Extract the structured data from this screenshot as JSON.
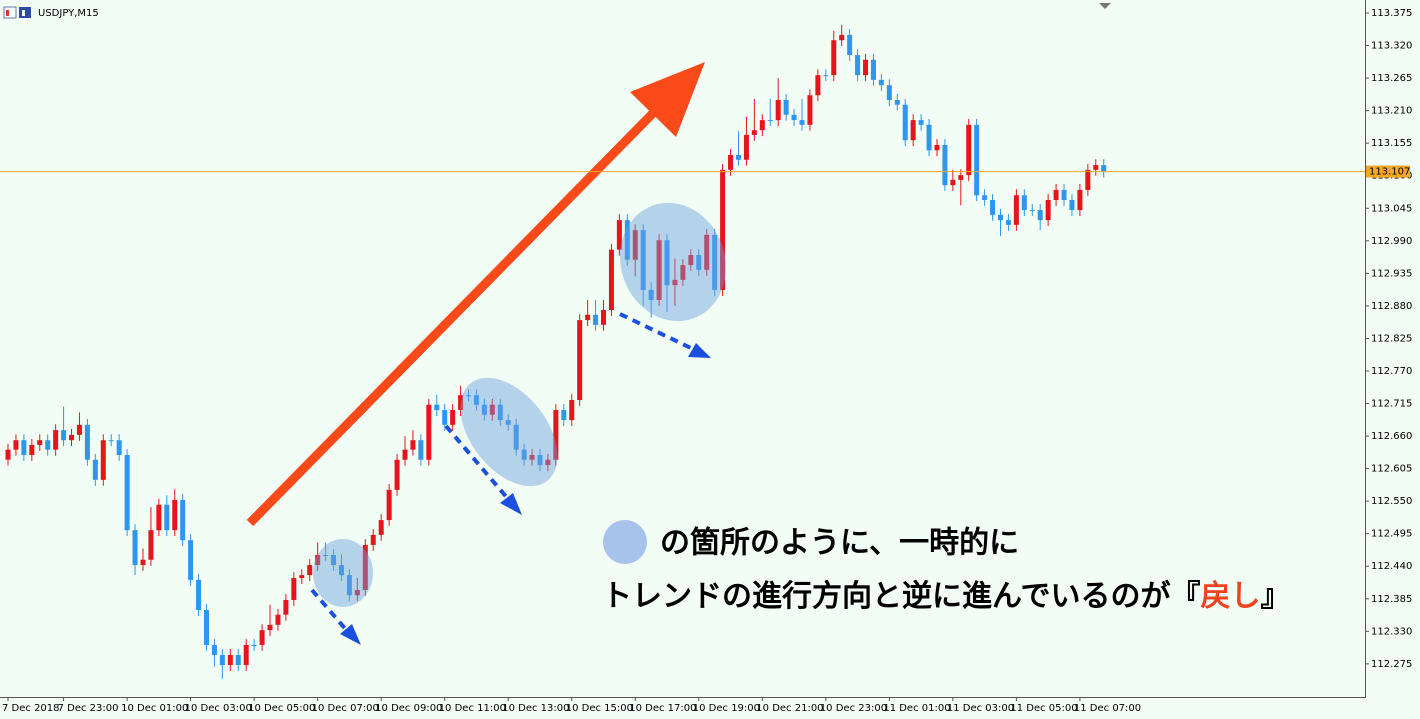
{
  "chart_data": {
    "type": "candlestick",
    "title": "USDJPY,M15",
    "bull_color": "#e8141b",
    "bear_color": "#2f96ee",
    "current_price": 113.107,
    "current_price_color": "#f5a623",
    "ylim": [
      112.219,
      113.397
    ],
    "yticks": [
      112.275,
      {
        "value": 112.33,
        "label": "112.330"
      },
      112.385,
      {
        "value": 112.44,
        "label": "112.440"
      },
      112.495,
      {
        "value": 112.55,
        "label": "112.550"
      },
      112.605,
      {
        "value": 112.66,
        "label": "112.660"
      },
      112.715,
      {
        "value": 112.77,
        "label": "112.770"
      },
      112.825,
      {
        "value": 112.88,
        "label": "112.880"
      },
      112.935,
      {
        "value": 112.99,
        "label": "112.990"
      },
      113.045,
      {
        "value": 113.1,
        "label": "113.100"
      },
      113.155,
      {
        "value": 113.21,
        "label": "113.210"
      },
      113.265,
      {
        "value": 113.32,
        "label": "113.320"
      },
      113.375
    ],
    "categories": [
      "7 Dec 2018",
      null,
      null,
      null,
      null,
      null,
      null,
      "7 Dec 23:00",
      null,
      null,
      null,
      null,
      null,
      null,
      null,
      "10 Dec 01:00",
      null,
      null,
      null,
      null,
      null,
      null,
      null,
      "10 Dec 03:00",
      null,
      null,
      null,
      null,
      null,
      null,
      null,
      "10 Dec 05:00",
      null,
      null,
      null,
      null,
      null,
      null,
      null,
      "10 Dec 07:00",
      null,
      null,
      null,
      null,
      null,
      null,
      null,
      "10 Dec 09:00",
      null,
      null,
      null,
      null,
      null,
      null,
      null,
      "10 Dec 11:00",
      null,
      null,
      null,
      null,
      null,
      null,
      null,
      "10 Dec 13:00",
      null,
      null,
      null,
      null,
      null,
      null,
      null,
      "10 Dec 15:00",
      null,
      null,
      null,
      null,
      null,
      null,
      null,
      "10 Dec 17:00",
      null,
      null,
      null,
      null,
      null,
      null,
      null,
      "10 Dec 19:00",
      null,
      null,
      null,
      null,
      null,
      null,
      null,
      "10 Dec 21:00",
      null,
      null,
      null,
      null,
      null,
      null,
      null,
      "10 Dec 23:00",
      null,
      null,
      null,
      null,
      null,
      null,
      null,
      "11 Dec 01:00",
      null,
      null,
      null,
      null,
      null,
      null,
      null,
      "11 Dec 03:00",
      null,
      null,
      null,
      null,
      null,
      null,
      null,
      "11 Dec 05:00",
      null,
      null,
      null,
      null,
      null,
      null,
      null,
      "11 Dec 07:00",
      null,
      null,
      null
    ],
    "ohlc": [
      [
        112.62,
        112.647,
        112.61,
        112.637
      ],
      [
        112.637,
        112.663,
        112.627,
        112.653
      ],
      [
        112.653,
        112.663,
        112.618,
        112.628
      ],
      [
        112.628,
        112.655,
        112.618,
        112.645
      ],
      [
        112.645,
        112.663,
        112.635,
        112.653
      ],
      [
        112.653,
        112.663,
        112.627,
        112.637
      ],
      [
        112.637,
        112.68,
        112.627,
        112.67
      ],
      [
        112.67,
        112.71,
        112.643,
        112.653
      ],
      [
        112.653,
        112.672,
        112.643,
        112.662
      ],
      [
        112.662,
        112.7,
        112.652,
        112.679
      ],
      [
        112.679,
        112.689,
        112.61,
        112.62
      ],
      [
        112.62,
        112.63,
        112.576,
        112.586
      ],
      [
        112.586,
        112.663,
        112.576,
        112.653
      ],
      [
        112.653,
        112.663,
        112.643,
        112.653
      ],
      [
        112.653,
        112.663,
        112.618,
        112.628
      ],
      [
        112.628,
        112.638,
        112.491,
        112.501
      ],
      [
        112.501,
        112.511,
        112.425,
        112.442
      ],
      [
        112.442,
        112.47,
        112.432,
        112.451
      ],
      [
        112.451,
        112.54,
        112.441,
        112.501
      ],
      [
        112.501,
        112.554,
        112.491,
        112.544
      ],
      [
        112.544,
        112.56,
        112.491,
        112.501
      ],
      [
        112.501,
        112.57,
        112.491,
        112.552
      ],
      [
        112.552,
        112.562,
        112.474,
        112.484
      ],
      [
        112.484,
        112.494,
        112.407,
        112.417
      ],
      [
        112.417,
        112.427,
        112.356,
        112.366
      ],
      [
        112.366,
        112.376,
        112.297,
        112.307
      ],
      [
        112.307,
        112.317,
        112.27,
        112.29
      ],
      [
        112.29,
        112.3,
        112.25,
        112.273
      ],
      [
        112.273,
        112.3,
        112.263,
        112.29
      ],
      [
        112.29,
        112.3,
        112.263,
        112.273
      ],
      [
        112.273,
        112.317,
        112.263,
        112.307
      ],
      [
        112.307,
        112.317,
        112.297,
        112.307
      ],
      [
        112.307,
        112.342,
        112.297,
        112.332
      ],
      [
        112.332,
        112.375,
        112.322,
        112.341
      ],
      [
        112.341,
        112.368,
        112.331,
        112.358
      ],
      [
        112.358,
        112.393,
        112.348,
        112.383
      ],
      [
        112.383,
        112.43,
        112.373,
        112.42
      ],
      [
        112.42,
        112.435,
        112.41,
        112.425
      ],
      [
        112.425,
        112.452,
        112.415,
        112.442
      ],
      [
        112.442,
        112.48,
        112.432,
        112.459
      ],
      [
        112.459,
        112.48,
        112.449,
        112.459
      ],
      [
        112.459,
        112.469,
        112.432,
        112.442
      ],
      [
        112.442,
        112.46,
        112.415,
        112.425
      ],
      [
        112.425,
        112.435,
        112.381,
        112.391
      ],
      [
        112.391,
        112.42,
        112.381,
        112.4
      ],
      [
        112.4,
        112.486,
        112.39,
        112.476
      ],
      [
        112.476,
        112.503,
        112.466,
        112.493
      ],
      [
        112.493,
        112.528,
        112.483,
        112.518
      ],
      [
        112.518,
        112.579,
        112.508,
        112.569
      ],
      [
        112.569,
        112.63,
        112.559,
        112.62
      ],
      [
        112.62,
        112.66,
        112.61,
        112.637
      ],
      [
        112.637,
        112.67,
        112.627,
        112.653
      ],
      [
        112.653,
        112.663,
        112.61,
        112.62
      ],
      [
        112.62,
        112.723,
        112.61,
        112.713
      ],
      [
        112.713,
        112.73,
        112.694,
        112.704
      ],
      [
        112.704,
        112.714,
        112.669,
        112.679
      ],
      [
        112.679,
        112.714,
        112.669,
        112.704
      ],
      [
        112.704,
        112.745,
        112.694,
        112.729
      ],
      [
        112.729,
        112.739,
        112.719,
        112.729
      ],
      [
        112.729,
        112.739,
        112.703,
        112.713
      ],
      [
        112.713,
        112.723,
        112.686,
        112.696
      ],
      [
        112.696,
        112.723,
        112.686,
        112.713
      ],
      [
        112.713,
        112.723,
        112.677,
        112.687
      ],
      [
        112.687,
        112.697,
        112.669,
        112.679
      ],
      [
        112.679,
        112.689,
        112.627,
        112.637
      ],
      [
        112.637,
        112.647,
        112.61,
        112.62
      ],
      [
        112.62,
        112.638,
        112.61,
        112.628
      ],
      [
        112.628,
        112.638,
        112.601,
        112.611
      ],
      [
        112.611,
        112.63,
        112.601,
        112.62
      ],
      [
        112.62,
        112.714,
        112.61,
        112.704
      ],
      [
        112.704,
        112.714,
        112.677,
        112.687
      ],
      [
        112.687,
        112.731,
        112.677,
        112.721
      ],
      [
        112.721,
        112.866,
        112.711,
        112.856
      ],
      [
        112.856,
        112.89,
        112.846,
        112.865
      ],
      [
        112.865,
        112.89,
        112.838,
        112.848
      ],
      [
        112.848,
        112.89,
        112.838,
        112.873
      ],
      [
        112.873,
        112.985,
        112.863,
        112.975
      ],
      [
        112.975,
        113.035,
        112.965,
        113.025
      ],
      [
        113.025,
        113.035,
        112.948,
        112.958
      ],
      [
        112.958,
        113.018,
        112.93,
        113.008
      ],
      [
        113.008,
        113.018,
        112.88,
        112.907
      ],
      [
        112.907,
        112.92,
        112.86,
        112.89
      ],
      [
        112.89,
        113.001,
        112.88,
        112.991
      ],
      [
        112.991,
        113.001,
        112.87,
        112.915
      ],
      [
        112.915,
        112.96,
        112.88,
        112.924
      ],
      [
        112.924,
        112.959,
        112.914,
        112.949
      ],
      [
        112.949,
        112.976,
        112.939,
        112.966
      ],
      [
        112.966,
        112.976,
        112.931,
        112.941
      ],
      [
        112.941,
        113.01,
        112.931,
        113.0
      ],
      [
        113.0,
        113.01,
        112.897,
        112.907
      ],
      [
        112.907,
        113.12,
        112.897,
        113.11
      ],
      [
        113.11,
        113.145,
        113.1,
        113.135
      ],
      [
        113.135,
        113.175,
        113.117,
        113.127
      ],
      [
        113.127,
        113.2,
        113.117,
        113.169
      ],
      [
        113.169,
        113.23,
        113.159,
        113.177
      ],
      [
        113.177,
        113.204,
        113.167,
        113.194
      ],
      [
        113.194,
        113.23,
        113.184,
        113.194
      ],
      [
        113.194,
        113.265,
        113.184,
        113.228
      ],
      [
        113.228,
        113.238,
        113.193,
        113.203
      ],
      [
        113.203,
        113.213,
        113.184,
        113.194
      ],
      [
        113.194,
        113.23,
        113.176,
        113.186
      ],
      [
        113.186,
        113.246,
        113.176,
        113.236
      ],
      [
        113.236,
        113.28,
        113.226,
        113.27
      ],
      [
        113.27,
        113.28,
        113.26,
        113.27
      ],
      [
        113.27,
        113.345,
        113.26,
        113.329
      ],
      [
        113.329,
        113.355,
        113.319,
        113.338
      ],
      [
        113.338,
        113.348,
        113.294,
        113.304
      ],
      [
        113.304,
        113.314,
        113.26,
        113.27
      ],
      [
        113.27,
        113.306,
        113.26,
        113.296
      ],
      [
        113.296,
        113.306,
        113.252,
        113.262
      ],
      [
        113.262,
        113.272,
        113.243,
        113.253
      ],
      [
        113.253,
        113.263,
        113.218,
        113.228
      ],
      [
        113.228,
        113.238,
        113.21,
        113.22
      ],
      [
        113.22,
        113.23,
        113.15,
        113.16
      ],
      [
        113.16,
        113.204,
        113.15,
        113.194
      ],
      [
        113.194,
        113.204,
        113.176,
        113.186
      ],
      [
        113.186,
        113.196,
        113.133,
        113.143
      ],
      [
        113.143,
        113.162,
        113.133,
        113.152
      ],
      [
        113.152,
        113.162,
        113.074,
        113.084
      ],
      [
        113.084,
        113.11,
        113.074,
        113.093
      ],
      [
        113.093,
        113.111,
        113.05,
        113.101
      ],
      [
        113.101,
        113.196,
        113.091,
        113.186
      ],
      [
        113.186,
        113.196,
        113.057,
        113.067
      ],
      [
        113.067,
        113.077,
        113.049,
        113.059
      ],
      [
        113.059,
        113.069,
        113.024,
        113.034
      ],
      [
        113.034,
        113.044,
        112.998,
        113.025
      ],
      [
        113.025,
        113.035,
        113.007,
        113.017
      ],
      [
        113.017,
        113.077,
        113.007,
        113.067
      ],
      [
        113.067,
        113.077,
        113.032,
        113.042
      ],
      [
        113.042,
        113.052,
        113.032,
        113.042
      ],
      [
        113.042,
        113.052,
        113.008,
        113.025
      ],
      [
        113.025,
        113.069,
        113.015,
        113.059
      ],
      [
        113.059,
        113.086,
        113.049,
        113.076
      ],
      [
        113.076,
        113.086,
        113.049,
        113.059
      ],
      [
        113.059,
        113.069,
        113.032,
        113.042
      ],
      [
        113.042,
        113.086,
        113.032,
        113.076
      ],
      [
        113.076,
        113.12,
        113.066,
        113.11
      ],
      [
        113.11,
        113.128,
        113.1,
        113.118
      ],
      [
        113.118,
        113.128,
        113.097,
        113.107
      ]
    ],
    "annotation": {
      "line1": "の箇所のように、一時的に",
      "line2_prefix": "トレンドの進行方向と逆に進んでいるのが『",
      "line2_highlight": "戻し",
      "line2_suffix": "』"
    }
  }
}
